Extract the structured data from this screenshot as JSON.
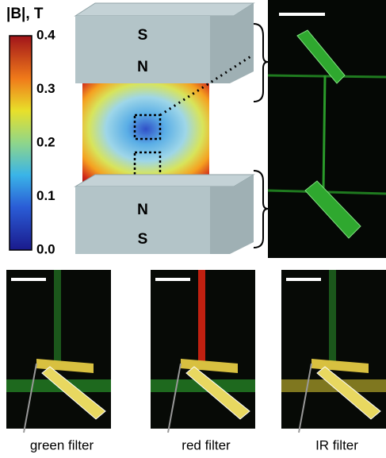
{
  "colorbar": {
    "title": "|B|, T",
    "ticks": [
      "0.4",
      "0.3",
      "0.2",
      "0.1",
      "0.0"
    ]
  },
  "magnets": {
    "top": [
      "S",
      "N"
    ],
    "bottom": [
      "N",
      "S"
    ]
  },
  "panels": [
    "green filter",
    "red filter",
    "IR filter"
  ]
}
